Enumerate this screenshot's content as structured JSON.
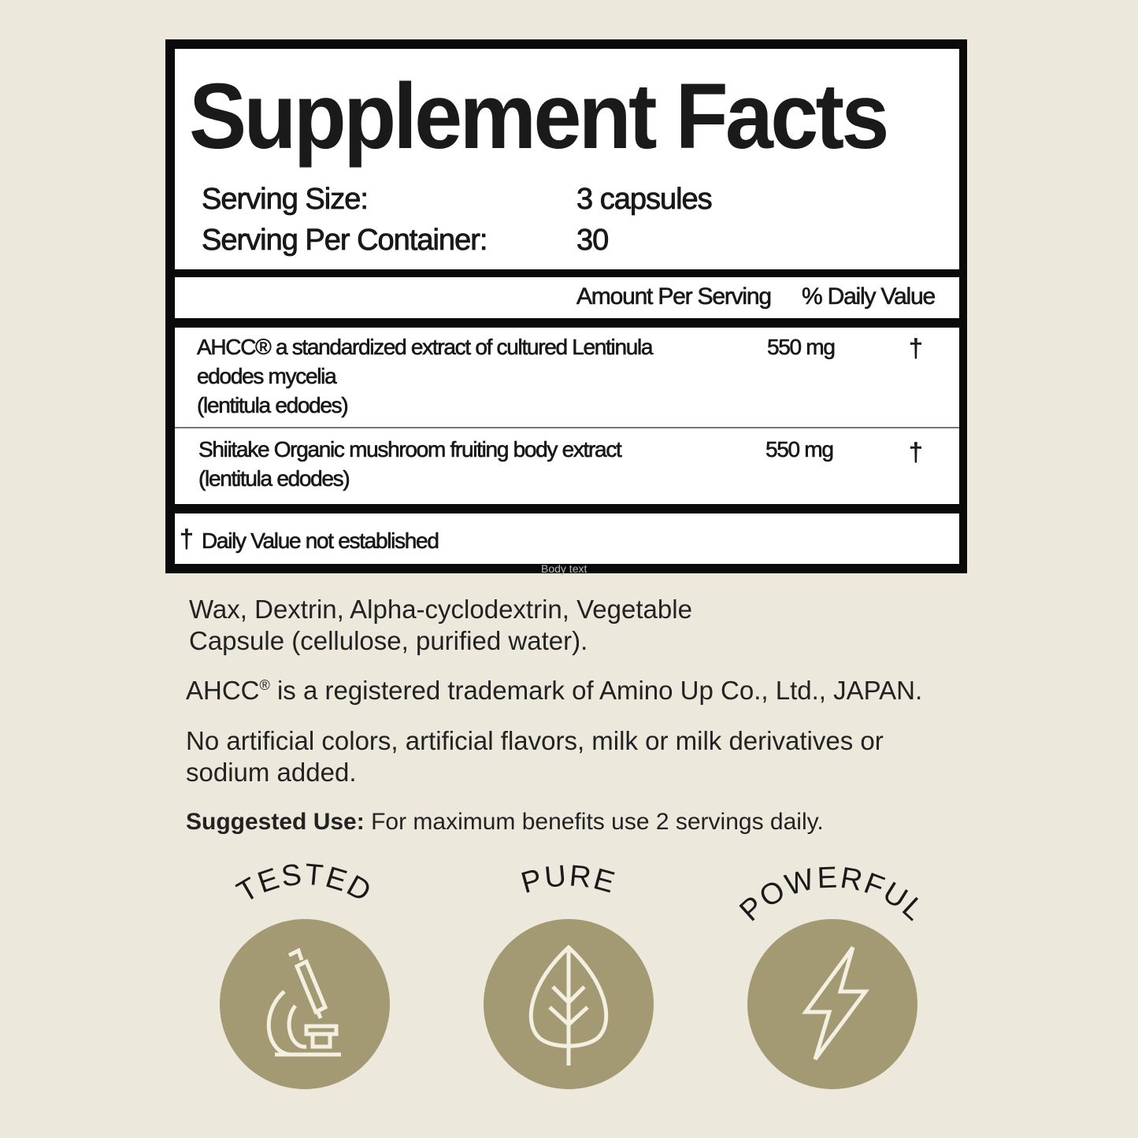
{
  "facts": {
    "title": "Supplement Facts",
    "serving_size_label": "Serving Size:",
    "serving_size_value": "3 capsules",
    "servings_label": "Serving Per Container:",
    "servings_value": "30",
    "col_amount": "Amount Per Serving",
    "col_dv": "% Daily Value",
    "ingredients": [
      {
        "line1": "AHCC® a standardized extract of cultured Lentinula",
        "line2": "edodes mycelia",
        "line3": "(lentitula edodes)",
        "amount": "550 mg",
        "dv": "†"
      },
      {
        "line1": "Shiitake Organic mushroom fruiting body extract",
        "line2": "(lentitula edodes)",
        "amount": "550 mg",
        "dv": "†"
      }
    ],
    "footnote_mark": "†",
    "footnote": "Daily Value not established",
    "watermark": "Body text"
  },
  "other": {
    "ingredients_l1": "Wax, Dextrin, Alpha-cyclodextrin, Vegetable",
    "ingredients_l2": "Capsule (cellulose, purified water).",
    "trademark_pre": "AHCC",
    "trademark_mark": "®",
    "trademark_post": " is a registered trademark of Amino Up Co., Ltd., JAPAN.",
    "no_artificial_l1": "No artificial colors, artificial flavors, milk or milk derivatives or",
    "no_artificial_l2": "sodium added.",
    "suggested_label": "Suggested Use:",
    "suggested_text": "For maximum benefits use 2 servings daily."
  },
  "badges": [
    {
      "label": "TESTED",
      "icon": "microscope-icon"
    },
    {
      "label": "PURE",
      "icon": "leaf-icon"
    },
    {
      "label": "POWERFUL",
      "icon": "lightning-bolt-icon"
    }
  ],
  "colors": {
    "background": "#ece8dc",
    "badge": "#a39a74",
    "icon_stroke": "#f3f0e2",
    "label_border": "#0a0a0a"
  }
}
